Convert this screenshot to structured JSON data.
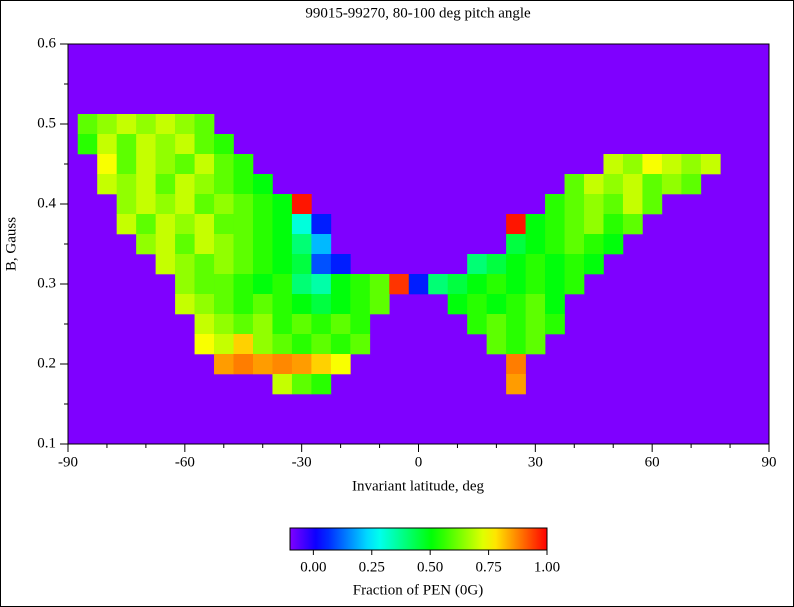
{
  "chart_data": {
    "type": "heatmap",
    "title": "99015-99270, 80-100 deg pitch angle",
    "xlabel": "Invariant latitude, deg",
    "ylabel": "B, Gauss",
    "xlim": [
      -90,
      90
    ],
    "xticks": [
      -90,
      -60,
      -30,
      0,
      30,
      60,
      90
    ],
    "xminorticks": [
      -80,
      -70,
      -50,
      -40,
      -20,
      -10,
      10,
      20,
      40,
      50,
      70,
      80
    ],
    "ylim": [
      0.1,
      0.6
    ],
    "yticks": [
      0.1,
      0.2,
      0.3,
      0.4,
      0.5,
      0.6
    ],
    "yminorticks": [
      0.15,
      0.25,
      0.35,
      0.45,
      0.55
    ],
    "background_color": "#7f00ff",
    "x": [
      -85,
      -80,
      -75,
      -70,
      -65,
      -60,
      -55,
      -50,
      -45,
      -40,
      -35,
      -30,
      -25,
      -20,
      -15,
      -10,
      -5,
      0,
      5,
      10,
      15,
      20,
      25,
      30,
      35,
      40,
      45,
      50,
      55,
      60,
      65,
      70,
      75
    ],
    "y": [
      0.5,
      0.475,
      0.45,
      0.425,
      0.4,
      0.375,
      0.35,
      0.325,
      0.3,
      0.275,
      0.25,
      0.225,
      0.2,
      0.175
    ],
    "z": [
      [
        0.6,
        0.65,
        0.7,
        0.65,
        0.7,
        0.65,
        0.6,
        null,
        null,
        null,
        null,
        null,
        null,
        null,
        null,
        null,
        null,
        null,
        null,
        null,
        null,
        null,
        null,
        null,
        null,
        null,
        null,
        null,
        null,
        null,
        null,
        null,
        null
      ],
      [
        0.55,
        0.7,
        0.6,
        0.7,
        0.65,
        0.7,
        0.6,
        0.55,
        null,
        null,
        null,
        null,
        null,
        null,
        null,
        null,
        null,
        null,
        null,
        null,
        null,
        null,
        null,
        null,
        null,
        null,
        null,
        null,
        null,
        null,
        null,
        null,
        null
      ],
      [
        null,
        0.75,
        0.6,
        0.7,
        0.65,
        0.6,
        0.7,
        0.6,
        0.55,
        null,
        null,
        null,
        null,
        null,
        null,
        null,
        null,
        null,
        null,
        null,
        null,
        null,
        null,
        null,
        null,
        null,
        null,
        0.7,
        0.65,
        0.75,
        0.7,
        0.65,
        0.7
      ],
      [
        null,
        0.7,
        0.65,
        0.7,
        0.6,
        0.7,
        0.65,
        0.6,
        0.55,
        0.5,
        null,
        null,
        null,
        null,
        null,
        null,
        null,
        null,
        null,
        null,
        null,
        null,
        null,
        null,
        null,
        0.6,
        0.7,
        0.65,
        0.7,
        0.6,
        0.65,
        0.6,
        null
      ],
      [
        null,
        null,
        0.65,
        0.7,
        0.65,
        0.7,
        0.6,
        0.65,
        0.6,
        0.55,
        0.5,
        0.98,
        null,
        null,
        null,
        null,
        null,
        null,
        null,
        null,
        null,
        null,
        null,
        null,
        0.55,
        0.6,
        0.65,
        0.6,
        0.7,
        0.6,
        null,
        null,
        null
      ],
      [
        null,
        null,
        0.7,
        0.6,
        0.7,
        0.65,
        0.7,
        0.6,
        0.6,
        0.55,
        0.5,
        0.3,
        0.05,
        null,
        null,
        null,
        null,
        null,
        null,
        null,
        null,
        null,
        0.98,
        0.5,
        0.55,
        0.6,
        0.65,
        0.55,
        0.6,
        null,
        null,
        null,
        null
      ],
      [
        null,
        null,
        null,
        0.65,
        0.7,
        0.6,
        0.7,
        0.65,
        0.6,
        0.55,
        0.5,
        0.4,
        0.2,
        null,
        null,
        null,
        null,
        null,
        null,
        null,
        null,
        null,
        0.45,
        0.5,
        0.55,
        0.6,
        0.55,
        0.5,
        null,
        null,
        null,
        null,
        null
      ],
      [
        null,
        null,
        null,
        null,
        0.7,
        0.65,
        0.6,
        0.65,
        0.6,
        0.55,
        0.5,
        0.45,
        0.1,
        0.05,
        null,
        null,
        null,
        null,
        null,
        null,
        0.4,
        0.45,
        0.5,
        0.55,
        0.5,
        0.55,
        0.5,
        null,
        null,
        null,
        null,
        null,
        null
      ],
      [
        null,
        null,
        null,
        null,
        null,
        0.65,
        0.6,
        0.6,
        0.55,
        0.5,
        0.55,
        0.4,
        0.35,
        0.5,
        0.55,
        0.6,
        0.95,
        0.05,
        0.4,
        0.45,
        0.5,
        0.55,
        0.5,
        0.55,
        0.5,
        0.55,
        null,
        null,
        null,
        null,
        null,
        null,
        null
      ],
      [
        null,
        null,
        null,
        null,
        null,
        0.7,
        0.65,
        0.6,
        0.55,
        0.6,
        0.55,
        0.5,
        0.45,
        0.5,
        0.55,
        0.6,
        null,
        null,
        null,
        0.5,
        0.55,
        0.5,
        0.55,
        0.6,
        0.5,
        null,
        null,
        null,
        null,
        null,
        null,
        null,
        null
      ],
      [
        null,
        null,
        null,
        null,
        null,
        null,
        0.7,
        0.65,
        0.6,
        0.65,
        0.55,
        0.6,
        0.55,
        0.6,
        0.55,
        null,
        null,
        null,
        null,
        null,
        0.55,
        0.6,
        0.55,
        0.6,
        0.55,
        null,
        null,
        null,
        null,
        null,
        null,
        null,
        null
      ],
      [
        null,
        null,
        null,
        null,
        null,
        null,
        0.75,
        0.7,
        0.8,
        0.65,
        0.6,
        0.55,
        0.6,
        0.55,
        0.6,
        null,
        null,
        null,
        null,
        null,
        null,
        0.6,
        0.55,
        0.6,
        null,
        null,
        null,
        null,
        null,
        null,
        null,
        null,
        null
      ],
      [
        null,
        null,
        null,
        null,
        null,
        null,
        null,
        0.85,
        0.88,
        0.85,
        0.87,
        0.85,
        0.8,
        0.75,
        null,
        null,
        null,
        null,
        null,
        null,
        null,
        null,
        0.88,
        null,
        null,
        null,
        null,
        null,
        null,
        null,
        null,
        null,
        null
      ],
      [
        null,
        null,
        null,
        null,
        null,
        null,
        null,
        null,
        null,
        null,
        0.7,
        0.6,
        0.55,
        null,
        null,
        null,
        null,
        null,
        null,
        null,
        null,
        null,
        0.85,
        null,
        null,
        null,
        null,
        null,
        null,
        null,
        null,
        null,
        null
      ]
    ],
    "colorbar": {
      "label": "Fraction of PEN (0G)",
      "lim": [
        -0.1,
        1
      ],
      "ticks": [
        {
          "value": 0,
          "label": "0.00"
        },
        {
          "value": 0.25,
          "label": "0.25"
        },
        {
          "value": 0.5,
          "label": "0.50"
        },
        {
          "value": 0.75,
          "label": "0.75"
        },
        {
          "value": 1,
          "label": "1.00"
        }
      ]
    }
  }
}
